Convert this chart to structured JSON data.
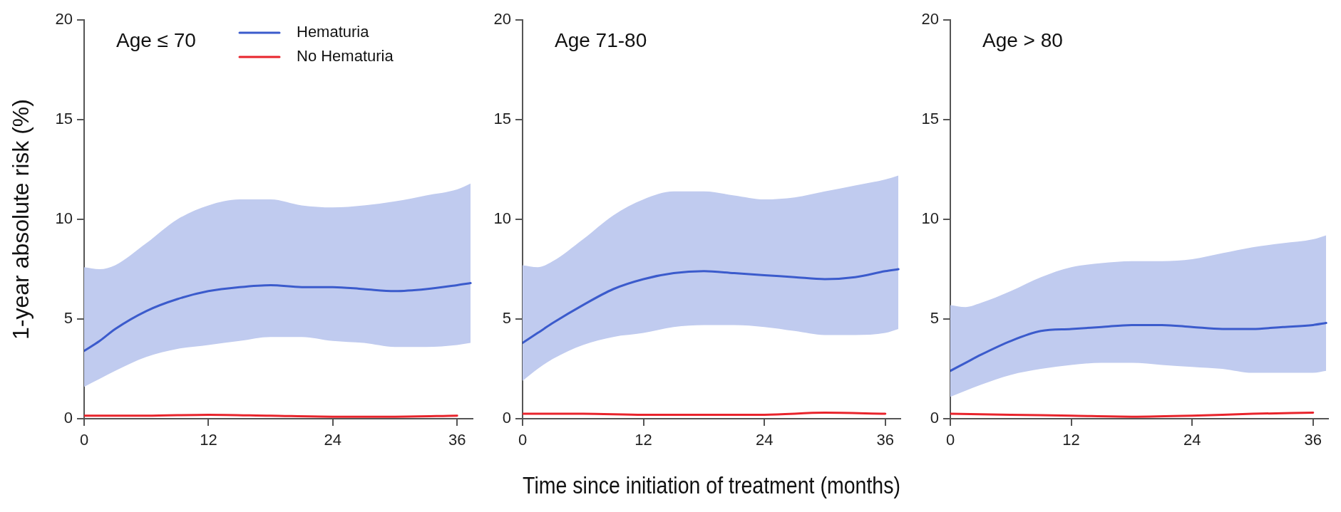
{
  "chart_data": [
    {
      "type": "line",
      "title": "Age ≤ 70",
      "ylabel": "1-year absolute risk (%)",
      "legend": "top",
      "grid": false,
      "xlim": [
        0,
        37.5
      ],
      "xticks": [
        0,
        12,
        24,
        36
      ],
      "ylim": [
        0,
        20
      ],
      "yticks": [
        0,
        5,
        10,
        15,
        20
      ],
      "series": [
        {
          "name": "Hematuria",
          "color": "#3b5bcc",
          "x": [
            0,
            1.5,
            3,
            6,
            9,
            12,
            15,
            18,
            21,
            24,
            27,
            30,
            33,
            36,
            37.3
          ],
          "values": [
            3.4,
            3.9,
            4.5,
            5.4,
            6.0,
            6.4,
            6.6,
            6.7,
            6.6,
            6.6,
            6.5,
            6.4,
            6.5,
            6.7,
            6.8
          ],
          "lower": [
            1.6,
            2.0,
            2.4,
            3.1,
            3.5,
            3.7,
            3.9,
            4.1,
            4.1,
            3.9,
            3.8,
            3.6,
            3.6,
            3.7,
            3.8
          ],
          "upper": [
            7.6,
            7.5,
            7.7,
            8.8,
            10.0,
            10.7,
            11.0,
            11.0,
            10.7,
            10.6,
            10.7,
            10.9,
            11.2,
            11.5,
            11.8
          ]
        },
        {
          "name": "No Hematuria",
          "color": "#e8242c",
          "x": [
            0,
            6,
            12,
            18,
            24,
            30,
            36
          ],
          "values": [
            0.15,
            0.15,
            0.2,
            0.15,
            0.1,
            0.1,
            0.15
          ]
        }
      ]
    },
    {
      "type": "line",
      "title": "Age 71-80",
      "xlabel": "Time since initiation of treatment (months)",
      "grid": false,
      "xlim": [
        0,
        37.5
      ],
      "xticks": [
        0,
        12,
        24,
        36
      ],
      "ylim": [
        0,
        20
      ],
      "yticks": [
        0,
        5,
        10,
        15,
        20
      ],
      "series": [
        {
          "color": "#3b5bcc",
          "x": [
            0,
            1.5,
            3,
            6,
            9,
            12,
            15,
            18,
            21,
            24,
            27,
            30,
            33,
            36,
            37.3
          ],
          "values": [
            3.8,
            4.3,
            4.8,
            5.7,
            6.5,
            7.0,
            7.3,
            7.4,
            7.3,
            7.2,
            7.1,
            7.0,
            7.1,
            7.4,
            7.5
          ],
          "lower": [
            1.9,
            2.5,
            3.0,
            3.7,
            4.1,
            4.3,
            4.6,
            4.7,
            4.7,
            4.6,
            4.4,
            4.2,
            4.2,
            4.3,
            4.5
          ],
          "upper": [
            7.7,
            7.6,
            7.9,
            9.0,
            10.2,
            11.0,
            11.4,
            11.4,
            11.2,
            11.0,
            11.1,
            11.4,
            11.7,
            12.0,
            12.2
          ]
        },
        {
          "color": "#e8242c",
          "x": [
            0,
            6,
            12,
            18,
            24,
            30,
            36
          ],
          "values": [
            0.25,
            0.25,
            0.2,
            0.2,
            0.2,
            0.3,
            0.25
          ]
        }
      ]
    },
    {
      "type": "line",
      "title": "Age > 80",
      "grid": false,
      "xlim": [
        0,
        37.5
      ],
      "xticks": [
        0,
        12,
        24,
        36
      ],
      "ylim": [
        0,
        20
      ],
      "yticks": [
        0,
        5,
        10,
        15,
        20
      ],
      "series": [
        {
          "color": "#3b5bcc",
          "x": [
            0,
            1.5,
            3,
            6,
            9,
            12,
            15,
            18,
            21,
            24,
            27,
            30,
            33,
            36,
            37.3
          ],
          "values": [
            2.4,
            2.8,
            3.2,
            3.9,
            4.4,
            4.5,
            4.6,
            4.7,
            4.7,
            4.6,
            4.5,
            4.5,
            4.6,
            4.7,
            4.8
          ],
          "lower": [
            1.1,
            1.4,
            1.7,
            2.2,
            2.5,
            2.7,
            2.8,
            2.8,
            2.7,
            2.6,
            2.5,
            2.3,
            2.3,
            2.3,
            2.4
          ],
          "upper": [
            5.7,
            5.6,
            5.8,
            6.4,
            7.1,
            7.6,
            7.8,
            7.9,
            7.9,
            8.0,
            8.3,
            8.6,
            8.8,
            9.0,
            9.2
          ]
        },
        {
          "color": "#e8242c",
          "x": [
            0,
            6,
            12,
            18,
            24,
            30,
            36
          ],
          "values": [
            0.25,
            0.2,
            0.15,
            0.1,
            0.15,
            0.25,
            0.3
          ]
        }
      ]
    }
  ]
}
